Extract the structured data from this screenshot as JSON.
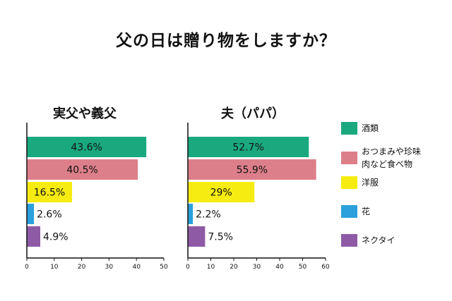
{
  "title": "父の日は贈り物をしますか？",
  "legend": [
    {
      "label": "酒類",
      "color": "#1aa97e"
    },
    {
      "label": "おつまみや珍味\n肉など食べ物",
      "color": "#dd7f8a"
    },
    {
      "label": "洋服",
      "color": "#f7ec12"
    },
    {
      "label": "花",
      "color": "#2ca0dc"
    },
    {
      "label": "ネクタイ",
      "color": "#8e5aa6"
    }
  ],
  "chart_data": [
    {
      "type": "bar",
      "orientation": "horizontal",
      "title": "実父や義父",
      "categories": [
        "酒類",
        "おつまみや珍味肉など食べ物",
        "洋服",
        "花",
        "ネクタイ"
      ],
      "values": [
        43.6,
        40.5,
        16.5,
        2.6,
        4.9
      ],
      "value_labels": [
        "43.6%",
        "40.5%",
        "16.5%",
        "2.6%",
        "4.9%"
      ],
      "xlim": [
        0,
        50
      ],
      "xticks": [
        0,
        10,
        20,
        30,
        40,
        50
      ]
    },
    {
      "type": "bar",
      "orientation": "horizontal",
      "title": "夫（パパ）",
      "categories": [
        "酒類",
        "おつまみや珍味肉など食べ物",
        "洋服",
        "花",
        "ネクタイ"
      ],
      "values": [
        52.7,
        55.9,
        29,
        2.2,
        7.5
      ],
      "value_labels": [
        "52.7%",
        "55.9%",
        "29%",
        "2.2%",
        "7.5%"
      ],
      "xlim": [
        0,
        60
      ],
      "xticks": [
        0,
        10,
        20,
        30,
        40,
        50,
        60
      ]
    }
  ]
}
